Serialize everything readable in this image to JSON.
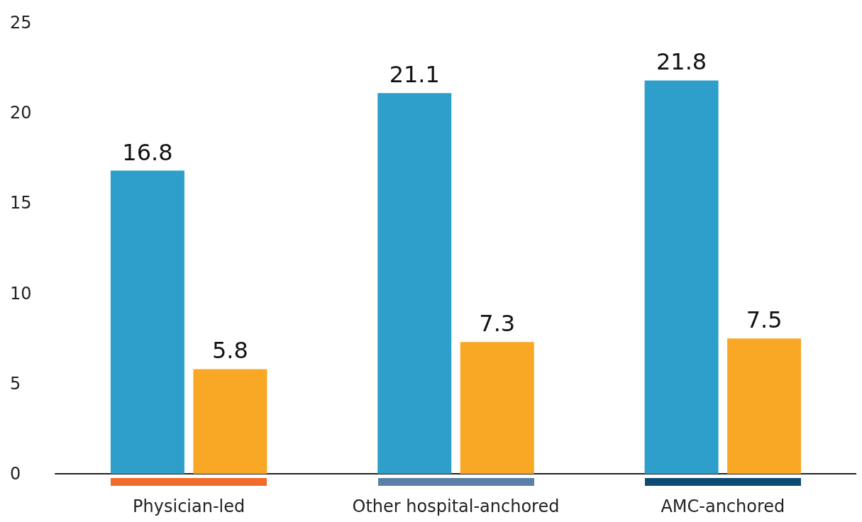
{
  "chart_data": {
    "type": "bar",
    "categories": [
      "Physician-led",
      "Other hospital-anchored",
      "AMC-anchored"
    ],
    "series": [
      {
        "color": "#2e9fcb",
        "values": [
          16.8,
          21.1,
          21.8
        ]
      },
      {
        "color": "#f9a826",
        "values": [
          5.8,
          7.3,
          7.5
        ]
      }
    ],
    "ylim": [
      0,
      25
    ],
    "yticks": [
      0,
      5,
      10,
      15,
      20,
      25
    ],
    "grid": false,
    "data_labels": true
  }
}
